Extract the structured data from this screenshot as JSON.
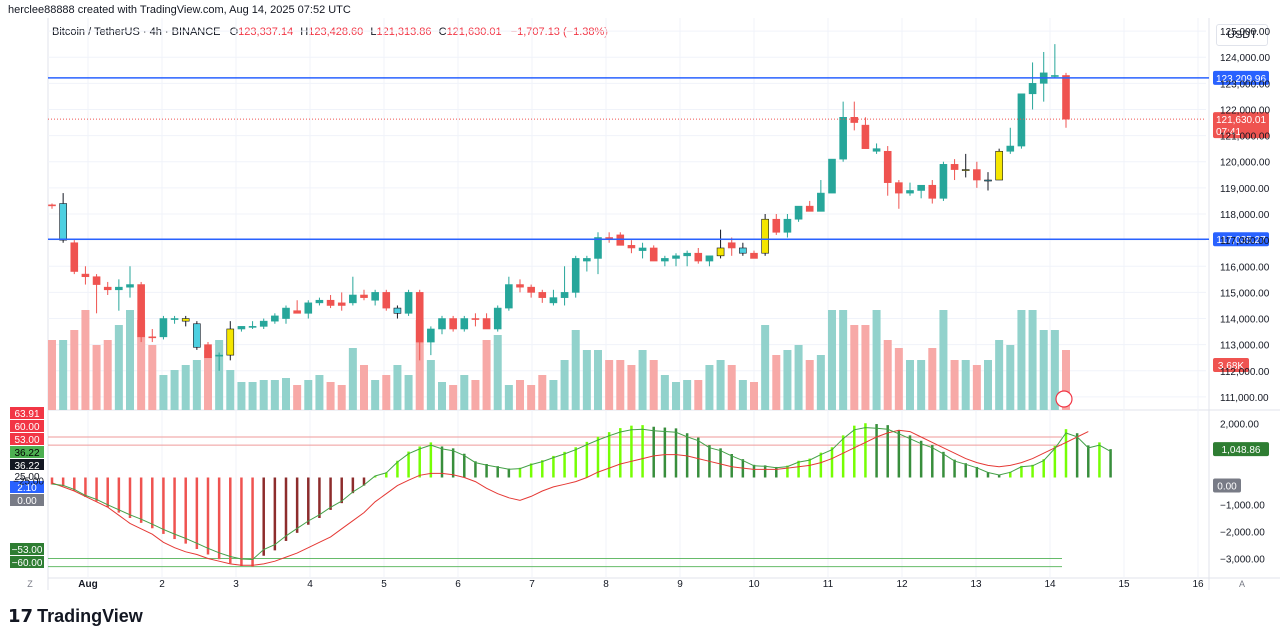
{
  "header": {
    "attribution": "herclee88888 created with TradingView.com, Aug 14, 2025 07:52 UTC",
    "symbol": "Bitcoin / TetherUS · 4h · BINANCE",
    "open_label": "O",
    "open": "123,337.14",
    "high_label": "H",
    "high": "123,428.60",
    "low_label": "L",
    "low": "121,313.86",
    "close_label": "C",
    "close": "121,630.01",
    "change": "−1,707.13 (−1.38%)",
    "currency": "USDT"
  },
  "footer": {
    "logo_text": "TradingView",
    "logo_mark": "𝟭𝟳"
  },
  "colors": {
    "up": "#26a69a",
    "down": "#ef5350",
    "yellow": "#f5e600",
    "cyan": "#4dd0e1",
    "hline": "#2962ff"
  },
  "chart_data": [
    {
      "type": "candlestick",
      "title": "Bitcoin / TetherUS · 4h · BINANCE",
      "ylim": [
        110500,
        125500
      ],
      "y_ticks": [
        "111,000.00",
        "112,000.00",
        "113,000.00",
        "114,000.00",
        "115,000.00",
        "116,000.00",
        "117,000.00",
        "118,000.00",
        "119,000.00",
        "120,000.00",
        "121,000.00",
        "122,000.00",
        "123,000.00",
        "124,000.00",
        "125,000.00"
      ],
      "x_ticks": [
        "Aug",
        "2",
        "3",
        "4",
        "5",
        "6",
        "7",
        "8",
        "9",
        "10",
        "11",
        "12",
        "13",
        "14",
        "15",
        "16"
      ],
      "corner_labels": [
        "Z",
        "A"
      ],
      "horizontal_lines": [
        {
          "value": 123209.96,
          "label": "123,209.96"
        },
        {
          "value": 117035.27,
          "label": "117,035.27"
        }
      ],
      "last_price": {
        "value": 121630.01,
        "label": "121,630.01",
        "countdown": "07:41"
      },
      "volume_label": "3.68K",
      "candles": [
        [
          118350,
          118400,
          118200,
          118350,
          0.7,
          "r"
        ],
        [
          118400,
          118800,
          116900,
          117000,
          0.7,
          "c"
        ],
        [
          116900,
          117000,
          115700,
          115800,
          0.8,
          "r"
        ],
        [
          115700,
          116000,
          115300,
          115600,
          1.0,
          "r"
        ],
        [
          115600,
          115700,
          114200,
          115300,
          0.65,
          "r"
        ],
        [
          115200,
          115400,
          114900,
          115100,
          0.7,
          "r"
        ],
        [
          115200,
          115500,
          114300,
          115100,
          0.85,
          "g"
        ],
        [
          115200,
          116000,
          114800,
          115300,
          1.0,
          "g"
        ],
        [
          115300,
          115400,
          113100,
          113300,
          0.9,
          "r"
        ],
        [
          113300,
          113600,
          113100,
          113300,
          0.65,
          "r"
        ],
        [
          113300,
          114100,
          113200,
          114000,
          0.35,
          "g"
        ],
        [
          114000,
          114100,
          113800,
          114000,
          0.4,
          "g"
        ],
        [
          114000,
          114100,
          113700,
          113900,
          0.45,
          "y"
        ],
        [
          113800,
          113900,
          112800,
          112900,
          0.5,
          "c"
        ],
        [
          113000,
          113100,
          112500,
          112500,
          0.6,
          "r"
        ],
        [
          112600,
          112700,
          112000,
          112600,
          0.7,
          "g"
        ],
        [
          112600,
          113900,
          112400,
          113600,
          0.4,
          "y"
        ],
        [
          113600,
          113700,
          113500,
          113700,
          0.28,
          "g"
        ],
        [
          113700,
          113900,
          113600,
          113700,
          0.28,
          "g"
        ],
        [
          113700,
          114000,
          113600,
          113900,
          0.3,
          "g"
        ],
        [
          113900,
          114200,
          113800,
          114100,
          0.3,
          "g"
        ],
        [
          114000,
          114500,
          113800,
          114400,
          0.32,
          "g"
        ],
        [
          114300,
          114700,
          114200,
          114200,
          0.25,
          "r"
        ],
        [
          114200,
          114700,
          114000,
          114600,
          0.3,
          "g"
        ],
        [
          114600,
          114800,
          114500,
          114700,
          0.35,
          "g"
        ],
        [
          114700,
          114900,
          114400,
          114500,
          0.28,
          "r"
        ],
        [
          114500,
          115000,
          114300,
          114600,
          0.25,
          "r"
        ],
        [
          114600,
          115600,
          114500,
          114900,
          0.62,
          "g"
        ],
        [
          114900,
          115100,
          114700,
          114800,
          0.45,
          "r"
        ],
        [
          114700,
          115100,
          114500,
          115000,
          0.3,
          "g"
        ],
        [
          115000,
          115100,
          114300,
          114400,
          0.35,
          "r"
        ],
        [
          114400,
          114500,
          114000,
          114200,
          0.45,
          "c"
        ],
        [
          114200,
          115100,
          114100,
          115000,
          0.35,
          "g"
        ],
        [
          115000,
          115100,
          112400,
          113100,
          0.9,
          "r"
        ],
        [
          113100,
          113700,
          112600,
          113600,
          0.5,
          "g"
        ],
        [
          113600,
          114100,
          113400,
          114000,
          0.28,
          "g"
        ],
        [
          114000,
          114100,
          113500,
          113600,
          0.25,
          "r"
        ],
        [
          113600,
          114100,
          113500,
          114000,
          0.35,
          "g"
        ],
        [
          114000,
          114200,
          113700,
          114000,
          0.3,
          "r"
        ],
        [
          114000,
          114200,
          113600,
          113600,
          0.7,
          "r"
        ],
        [
          113600,
          114500,
          113500,
          114400,
          0.75,
          "g"
        ],
        [
          114400,
          115600,
          114300,
          115300,
          0.25,
          "g"
        ],
        [
          115300,
          115500,
          115000,
          115200,
          0.3,
          "r"
        ],
        [
          115200,
          115300,
          114800,
          115000,
          0.25,
          "r"
        ],
        [
          115000,
          115100,
          114600,
          114800,
          0.35,
          "r"
        ],
        [
          114800,
          115100,
          114500,
          114600,
          0.3,
          "g"
        ],
        [
          114800,
          116000,
          114500,
          115000,
          0.5,
          "g"
        ],
        [
          115000,
          116400,
          114800,
          116300,
          0.8,
          "g"
        ],
        [
          116200,
          116400,
          115800,
          116300,
          0.6,
          "g"
        ],
        [
          116300,
          117300,
          115700,
          117100,
          0.6,
          "g"
        ],
        [
          117100,
          117300,
          116900,
          117100,
          0.5,
          "r"
        ],
        [
          117200,
          117300,
          116800,
          116800,
          0.5,
          "r"
        ],
        [
          116800,
          117000,
          116500,
          116700,
          0.45,
          "r"
        ],
        [
          116700,
          116900,
          116300,
          116600,
          0.6,
          "g"
        ],
        [
          116700,
          116800,
          116200,
          116200,
          0.5,
          "r"
        ],
        [
          116200,
          116400,
          116000,
          116300,
          0.35,
          "g"
        ],
        [
          116300,
          116500,
          116000,
          116400,
          0.28,
          "g"
        ],
        [
          116400,
          116600,
          116000,
          116500,
          0.3,
          "g"
        ],
        [
          116500,
          116700,
          116100,
          116200,
          0.3,
          "r"
        ],
        [
          116200,
          116400,
          116000,
          116400,
          0.45,
          "g"
        ],
        [
          116400,
          117400,
          116300,
          116700,
          0.5,
          "y"
        ],
        [
          116700,
          117100,
          116400,
          116900,
          0.45,
          "r"
        ],
        [
          116700,
          116900,
          116400,
          116500,
          0.3,
          "c"
        ],
        [
          116300,
          116600,
          116300,
          116500,
          0.28,
          "r"
        ],
        [
          116500,
          118000,
          116400,
          117800,
          0.85,
          "y"
        ],
        [
          117800,
          118000,
          117200,
          117300,
          0.55,
          "r"
        ],
        [
          117300,
          118000,
          117100,
          117800,
          0.6,
          "g"
        ],
        [
          117800,
          118300,
          117700,
          118300,
          0.65,
          "g"
        ],
        [
          118300,
          118500,
          118100,
          118100,
          0.5,
          "r"
        ],
        [
          118100,
          119300,
          118100,
          118800,
          0.55,
          "g"
        ],
        [
          118800,
          120100,
          118800,
          120100,
          1.0,
          "g"
        ],
        [
          120100,
          122300,
          120000,
          121700,
          1.0,
          "g"
        ],
        [
          121700,
          122300,
          121200,
          121500,
          0.85,
          "r"
        ],
        [
          121400,
          121700,
          120500,
          120500,
          0.85,
          "r"
        ],
        [
          120500,
          120700,
          120300,
          120400,
          1.0,
          "g"
        ],
        [
          120400,
          120600,
          118700,
          119200,
          0.7,
          "r"
        ],
        [
          119200,
          119300,
          118200,
          118800,
          0.62,
          "r"
        ],
        [
          118800,
          119200,
          118700,
          118900,
          0.5,
          "g"
        ],
        [
          118900,
          119100,
          118600,
          119100,
          0.5,
          "g"
        ],
        [
          119100,
          119300,
          118400,
          118600,
          0.62,
          "r"
        ],
        [
          118600,
          120000,
          118500,
          119900,
          1.0,
          "g"
        ],
        [
          119900,
          120100,
          119300,
          119700,
          0.5,
          "r"
        ],
        [
          119700,
          120300,
          119400,
          119700,
          0.5,
          "y"
        ],
        [
          119700,
          120000,
          119000,
          119300,
          0.45,
          "r"
        ],
        [
          119300,
          119600,
          118900,
          119300,
          0.5,
          "c"
        ],
        [
          119300,
          120500,
          119300,
          120400,
          0.7,
          "y"
        ],
        [
          120400,
          121300,
          120300,
          120600,
          0.65,
          "g"
        ],
        [
          120600,
          122600,
          120500,
          122600,
          1.0,
          "g"
        ],
        [
          122600,
          123800,
          122000,
          123000,
          1.0,
          "g"
        ],
        [
          123000,
          124200,
          122300,
          123400,
          0.8,
          "g"
        ],
        [
          123300,
          124500,
          123200,
          123300,
          0.8,
          "g"
        ],
        [
          123300,
          123400,
          121300,
          121630,
          0.6,
          "r"
        ]
      ]
    },
    {
      "type": "oscillator",
      "ylim": [
        -3500,
        2500
      ],
      "y_ticks": [
        "2,000.00",
        "−1,000.00",
        "−2,000.00",
        "−3,000.00"
      ],
      "left_ticks": [
        "−25.00"
      ],
      "current_value": "1,048.86",
      "zero_label": "0.00",
      "badges": [
        "63.91",
        "60.00",
        "53.00",
        "36.22",
        "36.22",
        "25.00",
        "2.10",
        "0.00",
        "−53.00",
        "−60.00"
      ],
      "histogram": [
        -260,
        -320,
        -480,
        -720,
        -880,
        -1100,
        -1300,
        -1500,
        -1680,
        -1880,
        -2090,
        -2280,
        -2450,
        -2650,
        -2850,
        -3030,
        -3180,
        -3280,
        -3300,
        -2900,
        -2700,
        -2350,
        -2050,
        -1750,
        -1500,
        -1200,
        -950,
        -580,
        -300,
        60,
        190,
        620,
        960,
        1150,
        1300,
        1150,
        1080,
        880,
        600,
        500,
        420,
        330,
        360,
        520,
        640,
        800,
        950,
        1120,
        1320,
        1510,
        1680,
        1830,
        1920,
        1940,
        1880,
        1850,
        1820,
        1640,
        1480,
        1200,
        1080,
        870,
        680,
        470,
        450,
        390,
        440,
        620,
        700,
        920,
        1120,
        1560,
        1920,
        2010,
        1980,
        1940,
        1760,
        1560,
        1360,
        1200,
        950,
        660,
        530,
        390,
        200,
        100,
        210,
        430,
        470,
        680,
        1170,
        1790,
        1640,
        1190,
        1300,
        1050
      ],
      "signal": [
        -200,
        -350,
        -500,
        -700,
        -900,
        -1100,
        -1400,
        -1700,
        -1900,
        -2100,
        -2400,
        -2600,
        -2750,
        -2850,
        -3000,
        -3100,
        -3200,
        -3250,
        -3250,
        -3200,
        -3100,
        -2950,
        -2800,
        -2600,
        -2400,
        -2200,
        -1900,
        -1600,
        -1300,
        -900,
        -600,
        -300,
        -100,
        80,
        150,
        150,
        100,
        0,
        -150,
        -400,
        -600,
        -750,
        -850,
        -700,
        -500,
        -350,
        -250,
        -150,
        0,
        200,
        350,
        500,
        600,
        700,
        800,
        850,
        850,
        800,
        700,
        600,
        500,
        400,
        350,
        300,
        300,
        300,
        350,
        400,
        450,
        550,
        700,
        900,
        1100,
        1300,
        1500,
        1650,
        1750,
        1700,
        1500,
        1300,
        1100,
        900,
        700,
        550,
        450,
        400,
        450,
        550,
        700,
        900,
        1100,
        1300,
        1500,
        1700
      ]
    }
  ]
}
